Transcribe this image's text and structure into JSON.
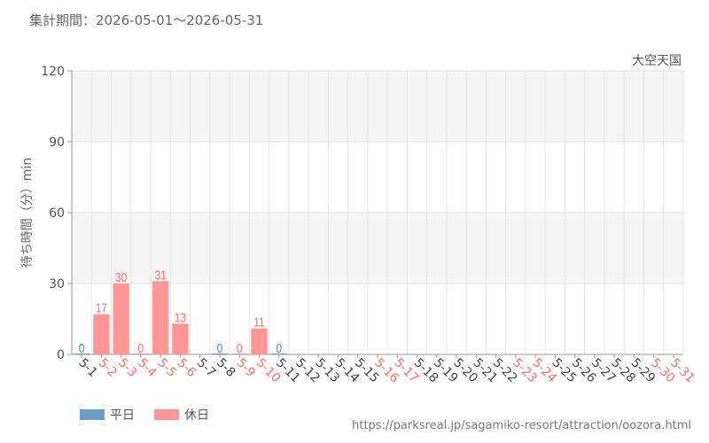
{
  "header": {
    "period": "集計期間：2026-05-01～2026-05-31"
  },
  "footer": {
    "source": "https://parksreal.jp/sagamiko-resort/attraction/oozora.html"
  },
  "colors": {
    "weekday": "#6a9ec8",
    "holiday": "#ff9696",
    "weekday_label": "#4f87b3",
    "holiday_label": "#ef6f6f",
    "grid": "#e6e6e6",
    "band": "#f5f5f5"
  },
  "chart_data": {
    "type": "bar",
    "title": "大空天国",
    "xlabel": "",
    "ylabel": "待ち時間（分）min",
    "ylim": [
      0,
      120
    ],
    "yticks": [
      0,
      30,
      60,
      90,
      120
    ],
    "grid": true,
    "legend_position": "bottom-left",
    "legend": [
      {
        "name": "平日",
        "color_key": "weekday"
      },
      {
        "name": "休日",
        "color_key": "holiday"
      }
    ],
    "categories": [
      "5-1",
      "5-2",
      "5-3",
      "5-4",
      "5-5",
      "5-6",
      "5-7",
      "5-8",
      "5-9",
      "5-10",
      "5-11",
      "5-12",
      "5-13",
      "5-14",
      "5-15",
      "5-16",
      "5-17",
      "5-18",
      "5-19",
      "5-20",
      "5-21",
      "5-22",
      "5-23",
      "5-24",
      "5-25",
      "5-26",
      "5-27",
      "5-28",
      "5-29",
      "5-30",
      "5-31"
    ],
    "day_type": [
      "平日",
      "休日",
      "休日",
      "休日",
      "休日",
      "休日",
      "平日",
      "平日",
      "休日",
      "休日",
      "平日",
      "平日",
      "平日",
      "平日",
      "平日",
      "休日",
      "休日",
      "平日",
      "平日",
      "平日",
      "平日",
      "平日",
      "休日",
      "休日",
      "平日",
      "平日",
      "平日",
      "平日",
      "平日",
      "休日",
      "休日"
    ],
    "values": [
      0,
      17,
      30,
      0,
      31,
      13,
      null,
      0,
      0,
      11,
      0,
      null,
      null,
      null,
      null,
      null,
      null,
      null,
      null,
      null,
      null,
      null,
      null,
      null,
      null,
      null,
      null,
      null,
      null,
      null,
      null
    ]
  }
}
